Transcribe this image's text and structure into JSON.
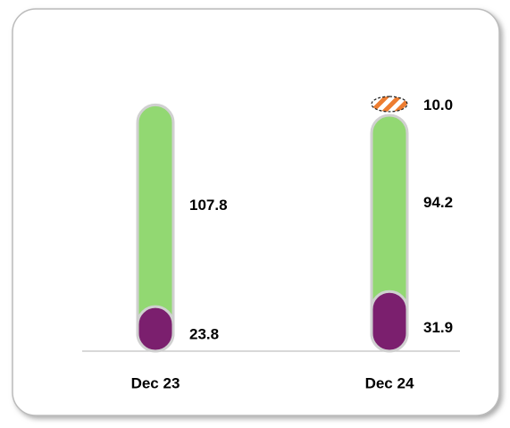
{
  "chart_data": {
    "type": "stacked-pill",
    "categories": [
      "Dec 23",
      "Dec 24"
    ],
    "series": [
      {
        "color": "#7b1f6e",
        "values": [
          23.8,
          31.9
        ]
      },
      {
        "color": "#92d872",
        "values": [
          107.8,
          94.2
        ]
      },
      {
        "color": "#ed7d31",
        "pattern": "hatched",
        "values": [
          null,
          10
        ],
        "value_labels": [
          null,
          "10.0"
        ]
      }
    ]
  }
}
